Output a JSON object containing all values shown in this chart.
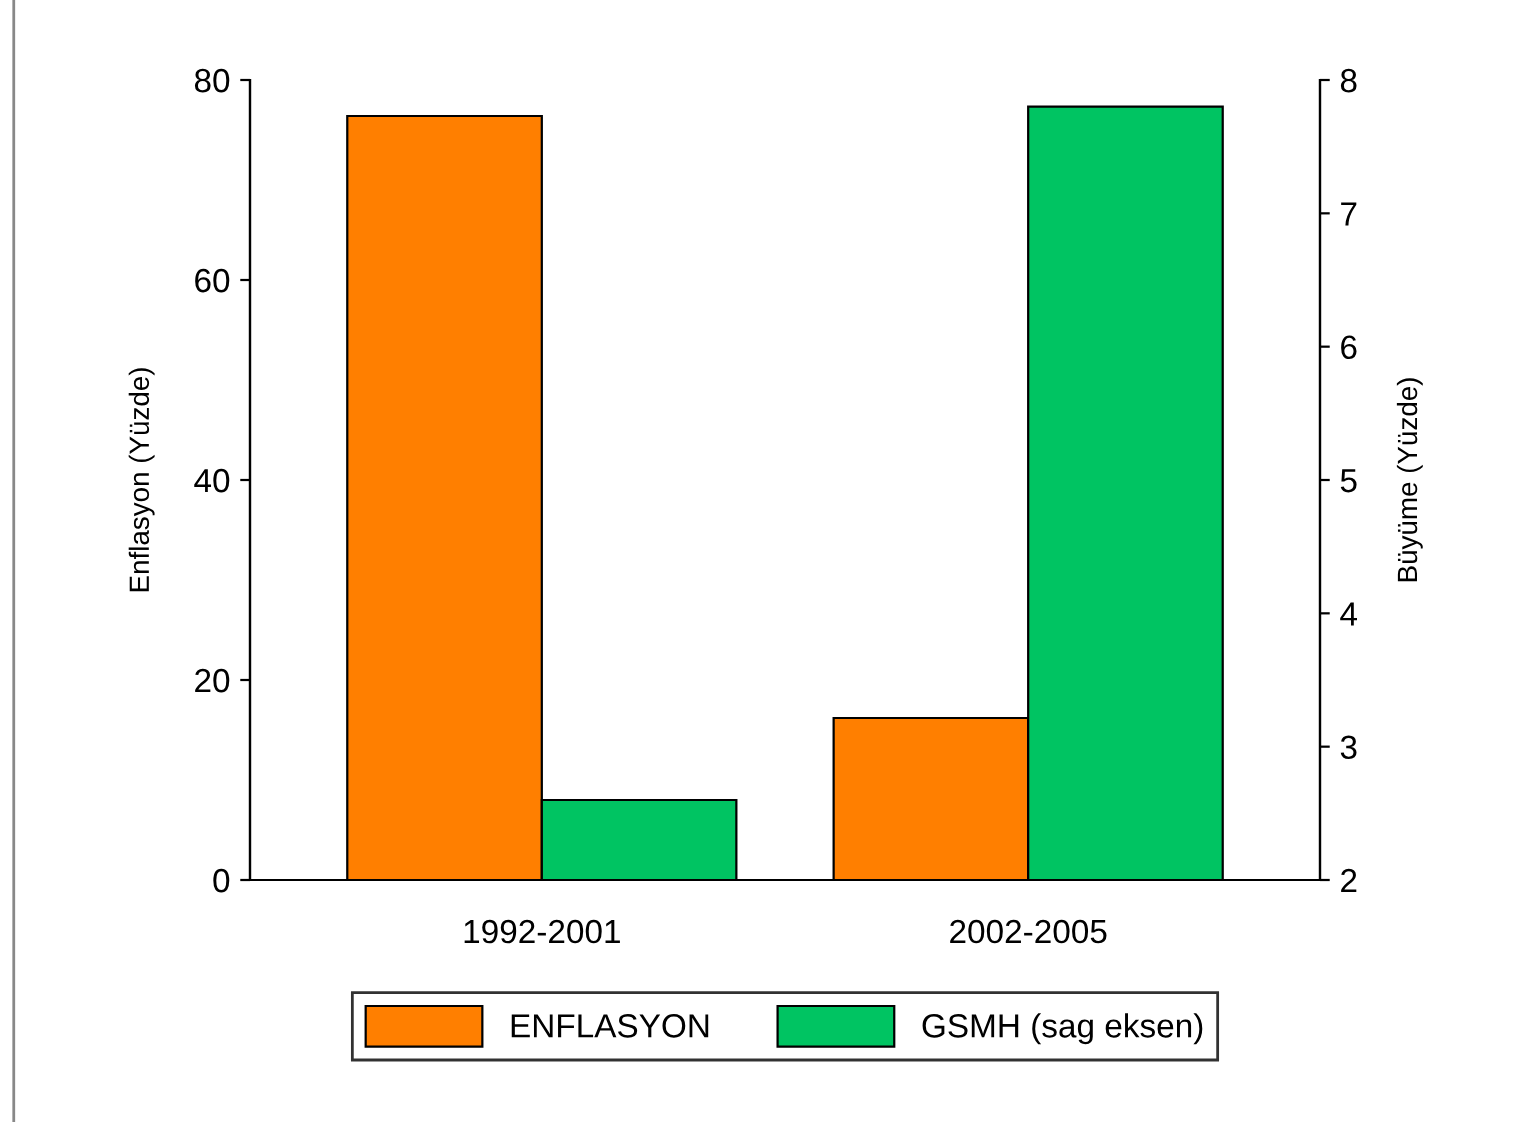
{
  "chart_data": {
    "type": "bar",
    "categories": [
      "1992-2001",
      "2002-2005"
    ],
    "series": [
      {
        "name": "ENFLASYON",
        "color": "#ff7f00",
        "values": [
          76.4,
          16.2
        ]
      },
      {
        "name": "GSMH (sag eksen)",
        "color": "#00c462",
        "values": [
          2.6,
          7.8
        ],
        "axis": "y2"
      }
    ],
    "ylabel": "Enflasyon (Yüzde)",
    "y2label": "Büyüme (Yüzde)",
    "ylim": [
      0,
      80
    ],
    "yticks": [
      0,
      20,
      40,
      60,
      80
    ],
    "y2lim": [
      2,
      8
    ],
    "y2ticks": [
      2,
      3,
      4,
      5,
      6,
      7,
      8
    ],
    "grid": false,
    "legend": "bottom"
  }
}
